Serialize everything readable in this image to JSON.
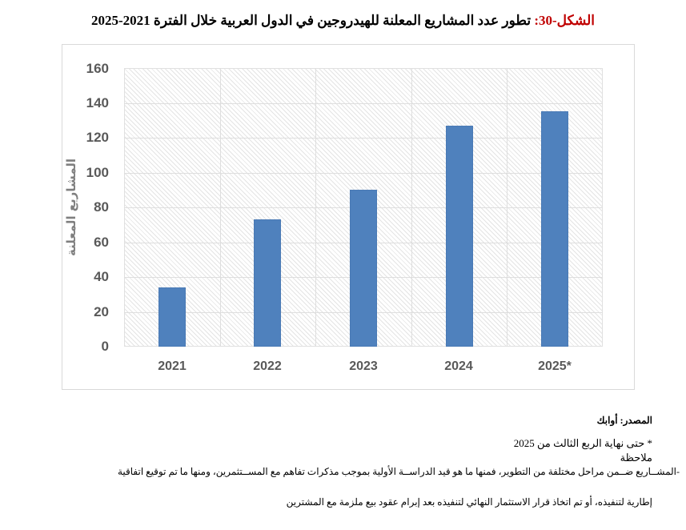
{
  "title": {
    "label": "الشكل-30:",
    "text": " تطور عدد المشاريع المعلنة للهيدروجين في الدول العربية خلال الفترة 2021-2025"
  },
  "chart_data": {
    "type": "bar",
    "title": "تطور عدد المشاريع المعلنة للهيدروجين في الدول العربية خلال الفترة 2021-2025",
    "categories": [
      "2021",
      "2022",
      "2023",
      "2024",
      "2025*"
    ],
    "values": [
      34,
      73,
      90,
      127,
      135
    ],
    "xlabel": "",
    "ylabel": "المشاريع المعلنة",
    "ylim": [
      0,
      160
    ],
    "yticks": [
      "0",
      "20",
      "40",
      "60",
      "80",
      "100",
      "120",
      "140",
      "160"
    ],
    "grid": true,
    "legend": null,
    "bar_color": "#4F81BD"
  },
  "notes": {
    "source": "المصدر: أوابك",
    "star_note": "* حتى نهاية الربع الثالث من 2025",
    "remark_label": "ملاحظة",
    "body_line1": "-المشــاريع ضــمن مراحل مختلفة من التطوير، فمنها ما هو قيد الدراســة الأولية بموجب مذكرات تفاهم مع المســتثمرين، ومنها ما تم توقيع اتفاقية",
    "body_line2": "إطارية لتنفيذه، أو تم اتخاذ قرار الاستثمار النهائي لتنفيذه بعد إبرام عقود بيع ملزمة مع المشترين"
  }
}
